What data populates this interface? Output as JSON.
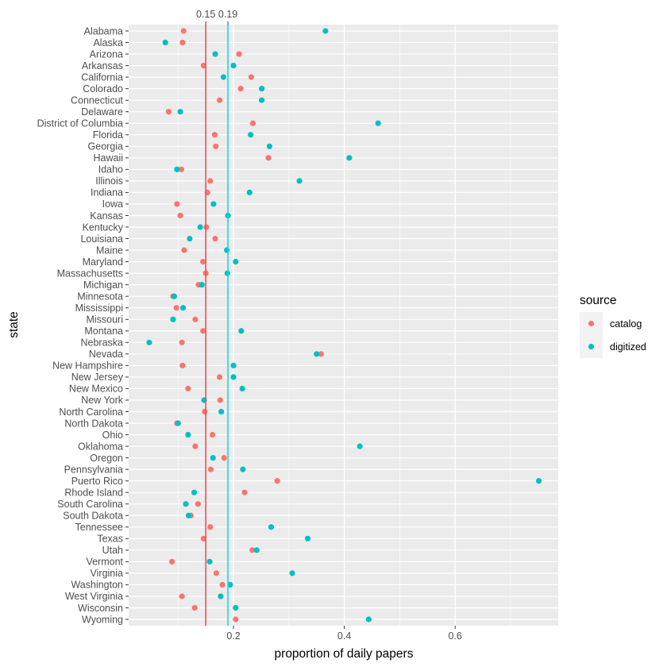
{
  "chart_data": {
    "type": "scatter",
    "title": "",
    "xlabel": "proportion of daily papers",
    "ylabel": "state",
    "xlim": [
      0.0108,
      0.786
    ],
    "x_ticks": [
      0.2,
      0.4,
      0.6
    ],
    "x_tick_labels": [
      "0.2",
      "0.4",
      "0.6"
    ],
    "grid": true,
    "legend": {
      "title": "source",
      "position": "right",
      "entries": [
        {
          "name": "catalog",
          "color": "#F8766D"
        },
        {
          "name": "digitized",
          "color": "#00BFC4"
        }
      ]
    },
    "reference_lines": [
      {
        "series": "catalog",
        "value": 0.15,
        "label": "0.15",
        "color": "#F8766D"
      },
      {
        "series": "digitized",
        "value": 0.19,
        "label": "0.19",
        "color": "#00BFC4"
      }
    ],
    "categories": [
      "Alabama",
      "Alaska",
      "Arizona",
      "Arkansas",
      "California",
      "Colorado",
      "Connecticut",
      "Delaware",
      "District of Columbia",
      "Florida",
      "Georgia",
      "Hawaii",
      "Idaho",
      "Illinois",
      "Indiana",
      "Iowa",
      "Kansas",
      "Kentucky",
      "Louisiana",
      "Maine",
      "Maryland",
      "Massachusetts",
      "Michigan",
      "Minnesota",
      "Mississippi",
      "Missouri",
      "Montana",
      "Nebraska",
      "Nevada",
      "New Hampshire",
      "New Jersey",
      "New Mexico",
      "New York",
      "North Carolina",
      "North Dakota",
      "Ohio",
      "Oklahoma",
      "Oregon",
      "Pennsylvania",
      "Puerto Rico",
      "Rhode Island",
      "South Carolina",
      "South Dakota",
      "Tennessee",
      "Texas",
      "Utah",
      "Vermont",
      "Virginia",
      "Washington",
      "West Virginia",
      "Wisconsin",
      "Wyoming"
    ],
    "series": [
      {
        "name": "catalog",
        "color": "#F8766D",
        "values": [
          0.11,
          0.108,
          0.21,
          0.146,
          0.232,
          0.213,
          0.175,
          0.083,
          0.235,
          0.166,
          0.168,
          0.263,
          0.106,
          0.158,
          0.153,
          0.098,
          0.104,
          0.151,
          0.167,
          0.111,
          0.145,
          0.15,
          0.137,
          0.091,
          0.097,
          0.131,
          0.145,
          0.107,
          0.358,
          0.108,
          0.175,
          0.118,
          0.176,
          0.148,
          0.098,
          0.162,
          0.131,
          0.183,
          0.159,
          0.279,
          0.22,
          0.136,
          0.123,
          0.158,
          0.146,
          0.234,
          0.089,
          0.169,
          0.18,
          0.107,
          0.13,
          0.204
        ]
      },
      {
        "name": "digitized",
        "color": "#00BFC4",
        "values": [
          0.366,
          0.077,
          0.167,
          0.2,
          0.182,
          0.251,
          0.251,
          0.104,
          0.461,
          0.231,
          0.265,
          0.409,
          0.098,
          0.319,
          0.229,
          0.164,
          0.19,
          0.14,
          0.121,
          0.188,
          0.204,
          0.189,
          0.143,
          0.093,
          0.109,
          0.091,
          0.214,
          0.048,
          0.35,
          0.2,
          0.2,
          0.216,
          0.147,
          0.178,
          0.1,
          0.118,
          0.428,
          0.163,
          0.217,
          0.751,
          0.129,
          0.114,
          0.119,
          0.268,
          0.334,
          0.242,
          0.157,
          0.306,
          0.194,
          0.177,
          0.204,
          0.444
        ]
      }
    ]
  }
}
